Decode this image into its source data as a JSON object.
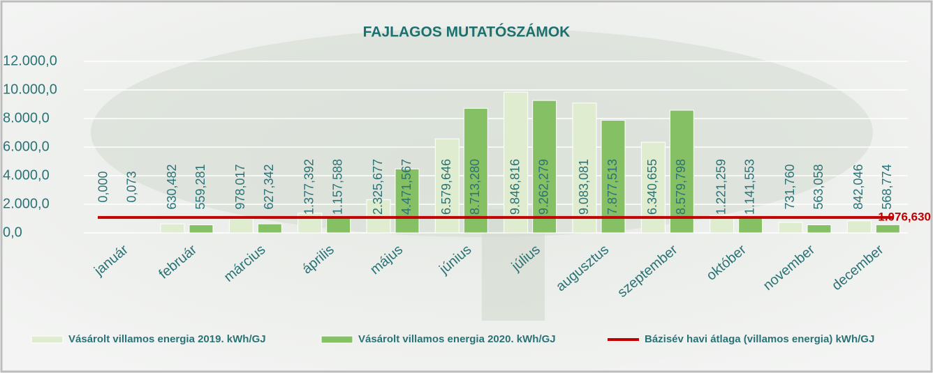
{
  "chart_data": {
    "type": "bar",
    "title": "FAJLAGOS MUTATÓSZÁMOK",
    "categories": [
      "január",
      "február",
      "március",
      "április",
      "május",
      "június",
      "július",
      "augusztus",
      "szeptember",
      "október",
      "november",
      "december"
    ],
    "series": [
      {
        "name": "Vásárolt villamos energia 2019. kWh/GJ",
        "color": "#dfeccf",
        "type": "bar",
        "values": [
          0.0,
          630.482,
          978.017,
          1377.392,
          2325.677,
          6579.646,
          9846.816,
          9083.081,
          6340.655,
          1221.259,
          731.76,
          842.046
        ],
        "value_labels": [
          "0,000",
          "630,482",
          "978,017",
          "1.377,392",
          "2.325,677",
          "6.579,646",
          "9.846,816",
          "9.083,081",
          "6.340,655",
          "1.221,259",
          "731,760",
          "842,046"
        ]
      },
      {
        "name": "Vásárolt villamos energia 2020. kWh/GJ",
        "color": "#86c064",
        "type": "bar",
        "values": [
          0.073,
          559.281,
          627.342,
          1157.588,
          4471.567,
          8713.28,
          9262.279,
          7877.513,
          8579.798,
          1141.553,
          563.058,
          568.774
        ],
        "value_labels": [
          "0,073",
          "559,281",
          "627,342",
          "1.157,588",
          "4.471,567",
          "8.713,280",
          "9.262,279",
          "7.877,513",
          "8.579,798",
          "1.141,553",
          "563,058",
          "568,774"
        ]
      },
      {
        "name": "Bázisév havi átlaga (villamos energia) kWh/GJ",
        "color": "#c00000",
        "type": "line",
        "values": [
          1076.63,
          1076.63,
          1076.63,
          1076.63,
          1076.63,
          1076.63,
          1076.63,
          1076.63,
          1076.63,
          1076.63,
          1076.63,
          1076.63
        ],
        "value_labels": [
          null,
          null,
          null,
          null,
          null,
          null,
          null,
          null,
          null,
          null,
          null,
          "1.076,630"
        ]
      }
    ],
    "ylim": [
      0,
      12000
    ],
    "yticks": [
      {
        "value": 0,
        "label": "0,0"
      },
      {
        "value": 2000,
        "label": "2.000,0"
      },
      {
        "value": 4000,
        "label": "4.000,0"
      },
      {
        "value": 6000,
        "label": "6.000,0"
      },
      {
        "value": 8000,
        "label": "8.000,0"
      },
      {
        "value": 10000,
        "label": "10.000,0"
      },
      {
        "value": 12000,
        "label": "12.000,0"
      }
    ],
    "grid": true,
    "legend": "bottom"
  }
}
